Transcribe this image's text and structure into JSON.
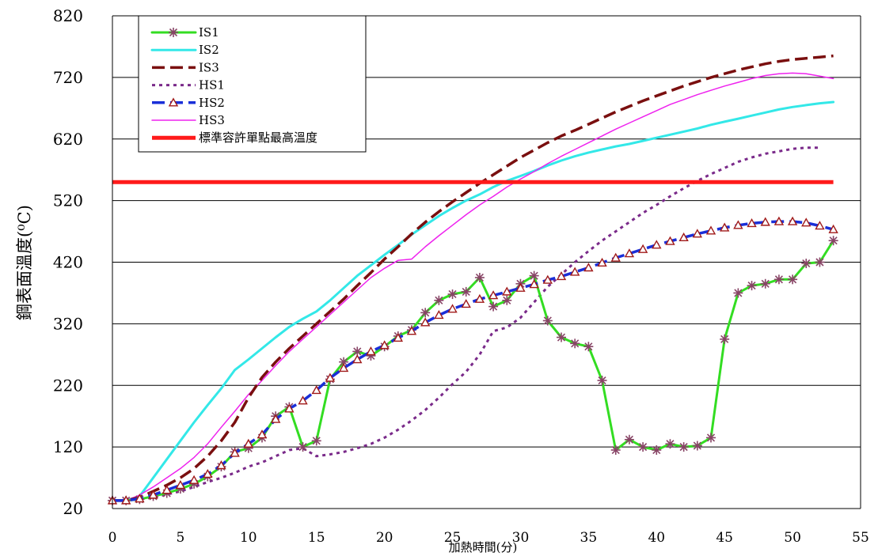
{
  "chart_data": {
    "type": "line",
    "xlabel": "加熱時間(分)",
    "ylabel": "鋼表面溫度(⁰C)",
    "xlim": [
      0,
      55
    ],
    "ylim": [
      20,
      820
    ],
    "x_ticks": [
      "0",
      "5",
      "10",
      "15",
      "20",
      "25",
      "30",
      "35",
      "40",
      "45",
      "50",
      "55"
    ],
    "y_ticks": [
      "20",
      "120",
      "220",
      "320",
      "420",
      "520",
      "620",
      "720",
      "820"
    ],
    "grid": "horizontal",
    "legend_position": "top-left",
    "series": [
      {
        "name": "IS1",
        "color": "#33dd22",
        "style": "solid",
        "marker": "asterisk",
        "marker_color": "#884466",
        "points": [
          [
            0,
            33
          ],
          [
            1,
            33
          ],
          [
            2,
            35
          ],
          [
            3,
            40
          ],
          [
            4,
            45
          ],
          [
            5,
            52
          ],
          [
            6,
            60
          ],
          [
            7,
            72
          ],
          [
            8,
            88
          ],
          [
            9,
            112
          ],
          [
            10,
            118
          ],
          [
            11,
            135
          ],
          [
            12,
            170
          ],
          [
            13,
            185
          ],
          [
            14,
            120
          ],
          [
            15,
            130
          ],
          [
            16,
            230
          ],
          [
            17,
            258
          ],
          [
            18,
            275
          ],
          [
            19,
            268
          ],
          [
            20,
            283
          ],
          [
            21,
            300
          ],
          [
            22,
            310
          ],
          [
            23,
            338
          ],
          [
            24,
            358
          ],
          [
            25,
            368
          ],
          [
            26,
            372
          ],
          [
            27,
            395
          ],
          [
            28,
            348
          ],
          [
            29,
            358
          ],
          [
            30,
            385
          ],
          [
            31,
            398
          ],
          [
            32,
            325
          ],
          [
            33,
            298
          ],
          [
            34,
            288
          ],
          [
            35,
            283
          ],
          [
            36,
            228
          ],
          [
            37,
            115
          ],
          [
            38,
            132
          ],
          [
            39,
            120
          ],
          [
            40,
            115
          ],
          [
            41,
            125
          ],
          [
            42,
            120
          ],
          [
            43,
            122
          ],
          [
            44,
            135
          ],
          [
            45,
            295
          ],
          [
            46,
            370
          ],
          [
            47,
            382
          ],
          [
            48,
            385
          ],
          [
            49,
            392
          ],
          [
            50,
            392
          ],
          [
            51,
            418
          ],
          [
            52,
            420
          ],
          [
            53,
            455
          ]
        ]
      },
      {
        "name": "IS2",
        "color": "#33e8e8",
        "style": "solid",
        "points": [
          [
            0,
            33
          ],
          [
            1,
            33
          ],
          [
            2,
            40
          ],
          [
            3,
            70
          ],
          [
            4,
            100
          ],
          [
            5,
            130
          ],
          [
            6,
            160
          ],
          [
            7,
            188
          ],
          [
            8,
            215
          ],
          [
            9,
            245
          ],
          [
            10,
            262
          ],
          [
            11,
            280
          ],
          [
            12,
            298
          ],
          [
            13,
            315
          ],
          [
            14,
            328
          ],
          [
            15,
            340
          ],
          [
            16,
            358
          ],
          [
            17,
            378
          ],
          [
            18,
            398
          ],
          [
            19,
            415
          ],
          [
            20,
            432
          ],
          [
            21,
            448
          ],
          [
            22,
            465
          ],
          [
            23,
            480
          ],
          [
            24,
            495
          ],
          [
            25,
            508
          ],
          [
            26,
            520
          ],
          [
            27,
            530
          ],
          [
            28,
            542
          ],
          [
            29,
            552
          ],
          [
            30,
            560
          ],
          [
            31,
            568
          ],
          [
            32,
            577
          ],
          [
            33,
            585
          ],
          [
            34,
            592
          ],
          [
            35,
            598
          ],
          [
            36,
            603
          ],
          [
            37,
            608
          ],
          [
            38,
            612
          ],
          [
            39,
            617
          ],
          [
            40,
            622
          ],
          [
            41,
            627
          ],
          [
            42,
            632
          ],
          [
            43,
            637
          ],
          [
            44,
            643
          ],
          [
            45,
            648
          ],
          [
            46,
            653
          ],
          [
            47,
            658
          ],
          [
            48,
            663
          ],
          [
            49,
            668
          ],
          [
            50,
            672
          ],
          [
            51,
            675
          ],
          [
            52,
            678
          ],
          [
            53,
            680
          ]
        ]
      },
      {
        "name": "IS3",
        "color": "#7a0f0f",
        "style": "dashed",
        "points": [
          [
            0,
            33
          ],
          [
            1,
            33
          ],
          [
            2,
            38
          ],
          [
            3,
            48
          ],
          [
            4,
            58
          ],
          [
            5,
            70
          ],
          [
            6,
            85
          ],
          [
            7,
            105
          ],
          [
            8,
            130
          ],
          [
            9,
            160
          ],
          [
            10,
            200
          ],
          [
            11,
            233
          ],
          [
            12,
            258
          ],
          [
            13,
            280
          ],
          [
            14,
            300
          ],
          [
            15,
            320
          ],
          [
            16,
            340
          ],
          [
            17,
            360
          ],
          [
            18,
            382
          ],
          [
            19,
            403
          ],
          [
            20,
            425
          ],
          [
            21,
            445
          ],
          [
            22,
            466
          ],
          [
            23,
            485
          ],
          [
            24,
            502
          ],
          [
            25,
            518
          ],
          [
            26,
            533
          ],
          [
            27,
            548
          ],
          [
            28,
            562
          ],
          [
            29,
            576
          ],
          [
            30,
            590
          ],
          [
            31,
            602
          ],
          [
            32,
            614
          ],
          [
            33,
            625
          ],
          [
            34,
            634
          ],
          [
            35,
            644
          ],
          [
            36,
            654
          ],
          [
            37,
            664
          ],
          [
            38,
            673
          ],
          [
            39,
            682
          ],
          [
            40,
            690
          ],
          [
            41,
            698
          ],
          [
            42,
            706
          ],
          [
            43,
            713
          ],
          [
            44,
            720
          ],
          [
            45,
            726
          ],
          [
            46,
            732
          ],
          [
            47,
            737
          ],
          [
            48,
            742
          ],
          [
            49,
            746
          ],
          [
            50,
            749
          ],
          [
            51,
            751
          ],
          [
            52,
            753
          ],
          [
            53,
            755
          ]
        ]
      },
      {
        "name": "HS1",
        "color": "#7a2a8a",
        "style": "dotted",
        "points": [
          [
            0,
            33
          ],
          [
            1,
            33
          ],
          [
            2,
            35
          ],
          [
            3,
            38
          ],
          [
            4,
            43
          ],
          [
            5,
            48
          ],
          [
            6,
            55
          ],
          [
            7,
            63
          ],
          [
            8,
            70
          ],
          [
            9,
            78
          ],
          [
            10,
            88
          ],
          [
            11,
            95
          ],
          [
            12,
            105
          ],
          [
            13,
            115
          ],
          [
            14,
            118
          ],
          [
            15,
            105
          ],
          [
            16,
            108
          ],
          [
            17,
            112
          ],
          [
            18,
            118
          ],
          [
            19,
            125
          ],
          [
            20,
            135
          ],
          [
            21,
            148
          ],
          [
            22,
            163
          ],
          [
            23,
            180
          ],
          [
            24,
            200
          ],
          [
            25,
            222
          ],
          [
            26,
            242
          ],
          [
            27,
            270
          ],
          [
            28,
            308
          ],
          [
            29,
            314
          ],
          [
            30,
            330
          ],
          [
            31,
            355
          ],
          [
            32,
            380
          ],
          [
            33,
            400
          ],
          [
            34,
            420
          ],
          [
            35,
            438
          ],
          [
            36,
            455
          ],
          [
            37,
            470
          ],
          [
            38,
            485
          ],
          [
            39,
            500
          ],
          [
            40,
            513
          ],
          [
            41,
            527
          ],
          [
            42,
            540
          ],
          [
            43,
            552
          ],
          [
            44,
            563
          ],
          [
            45,
            573
          ],
          [
            46,
            583
          ],
          [
            47,
            590
          ],
          [
            48,
            596
          ],
          [
            49,
            600
          ],
          [
            50,
            604
          ],
          [
            51,
            606
          ],
          [
            52,
            606
          ]
        ]
      },
      {
        "name": "HS2",
        "color": "#1a2fd8",
        "style": "dashed",
        "marker": "triangle",
        "marker_color": "#a01a1a",
        "points": [
          [
            0,
            33
          ],
          [
            1,
            33
          ],
          [
            2,
            36
          ],
          [
            3,
            42
          ],
          [
            4,
            50
          ],
          [
            5,
            58
          ],
          [
            6,
            66
          ],
          [
            7,
            76
          ],
          [
            8,
            90
          ],
          [
            9,
            110
          ],
          [
            10,
            125
          ],
          [
            11,
            140
          ],
          [
            12,
            165
          ],
          [
            13,
            182
          ],
          [
            14,
            195
          ],
          [
            15,
            212
          ],
          [
            16,
            232
          ],
          [
            17,
            248
          ],
          [
            18,
            262
          ],
          [
            19,
            275
          ],
          [
            20,
            285
          ],
          [
            21,
            297
          ],
          [
            22,
            308
          ],
          [
            23,
            322
          ],
          [
            24,
            334
          ],
          [
            25,
            344
          ],
          [
            26,
            352
          ],
          [
            27,
            360
          ],
          [
            28,
            366
          ],
          [
            29,
            372
          ],
          [
            30,
            378
          ],
          [
            31,
            384
          ],
          [
            32,
            391
          ],
          [
            33,
            397
          ],
          [
            34,
            404
          ],
          [
            35,
            411
          ],
          [
            36,
            419
          ],
          [
            37,
            427
          ],
          [
            38,
            434
          ],
          [
            39,
            441
          ],
          [
            40,
            448
          ],
          [
            41,
            454
          ],
          [
            42,
            460
          ],
          [
            43,
            466
          ],
          [
            44,
            471
          ],
          [
            45,
            476
          ],
          [
            46,
            480
          ],
          [
            47,
            483
          ],
          [
            48,
            485
          ],
          [
            49,
            486
          ],
          [
            50,
            486
          ],
          [
            51,
            484
          ],
          [
            52,
            479
          ],
          [
            53,
            473
          ]
        ]
      },
      {
        "name": "HS3",
        "color": "#ee22ee",
        "style": "solid",
        "points": [
          [
            0,
            33
          ],
          [
            1,
            33
          ],
          [
            2,
            42
          ],
          [
            3,
            55
          ],
          [
            4,
            70
          ],
          [
            5,
            85
          ],
          [
            6,
            103
          ],
          [
            7,
            125
          ],
          [
            8,
            152
          ],
          [
            9,
            178
          ],
          [
            10,
            205
          ],
          [
            11,
            228
          ],
          [
            12,
            252
          ],
          [
            13,
            275
          ],
          [
            14,
            295
          ],
          [
            15,
            315
          ],
          [
            16,
            335
          ],
          [
            17,
            355
          ],
          [
            18,
            375
          ],
          [
            19,
            395
          ],
          [
            20,
            410
          ],
          [
            21,
            423
          ],
          [
            22,
            425
          ],
          [
            23,
            445
          ],
          [
            24,
            463
          ],
          [
            25,
            480
          ],
          [
            26,
            497
          ],
          [
            27,
            513
          ],
          [
            28,
            527
          ],
          [
            29,
            542
          ],
          [
            30,
            555
          ],
          [
            31,
            567
          ],
          [
            32,
            580
          ],
          [
            33,
            592
          ],
          [
            34,
            603
          ],
          [
            35,
            614
          ],
          [
            36,
            625
          ],
          [
            37,
            636
          ],
          [
            38,
            646
          ],
          [
            39,
            656
          ],
          [
            40,
            666
          ],
          [
            41,
            676
          ],
          [
            42,
            684
          ],
          [
            43,
            692
          ],
          [
            44,
            699
          ],
          [
            45,
            706
          ],
          [
            46,
            712
          ],
          [
            47,
            718
          ],
          [
            48,
            723
          ],
          [
            49,
            726
          ],
          [
            50,
            727
          ],
          [
            51,
            726
          ],
          [
            52,
            722
          ],
          [
            53,
            718
          ]
        ]
      },
      {
        "name": "標準容許單點最高溫度",
        "color": "#ff1a1a",
        "style": "solid",
        "points": [
          [
            0,
            550
          ],
          [
            53,
            550
          ]
        ]
      }
    ]
  }
}
